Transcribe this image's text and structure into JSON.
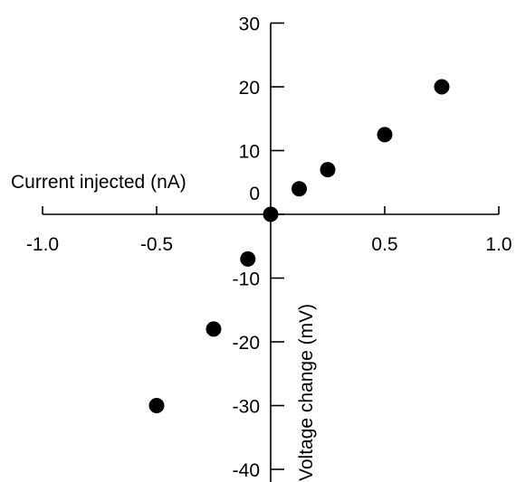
{
  "chart_data": {
    "type": "scatter",
    "xlabel": "Current injected (nA)",
    "ylabel": "Voltage change (mV)",
    "xlim": [
      -1.0,
      1.0
    ],
    "ylim": [
      -40,
      30
    ],
    "x_ticks": [
      -1.0,
      -0.5,
      0.5,
      1.0
    ],
    "x_tick_labels": [
      "-1.0",
      "-0.5",
      "0.5",
      "1.0"
    ],
    "y_ticks": [
      30,
      20,
      10,
      0,
      -10,
      -20,
      -30,
      -40
    ],
    "y_tick_labels": [
      "30",
      "20",
      "10",
      "0",
      "-10",
      "-20",
      "-30",
      "-40"
    ],
    "grid": false,
    "series": [
      {
        "color": "#000000",
        "points": [
          {
            "x": -0.5,
            "y": -30
          },
          {
            "x": -0.25,
            "y": -18
          },
          {
            "x": -0.1,
            "y": -7
          },
          {
            "x": 0.0,
            "y": 0
          },
          {
            "x": 0.125,
            "y": 4
          },
          {
            "x": 0.25,
            "y": 7
          },
          {
            "x": 0.5,
            "y": 12.5
          },
          {
            "x": 0.75,
            "y": 20
          }
        ]
      }
    ]
  }
}
